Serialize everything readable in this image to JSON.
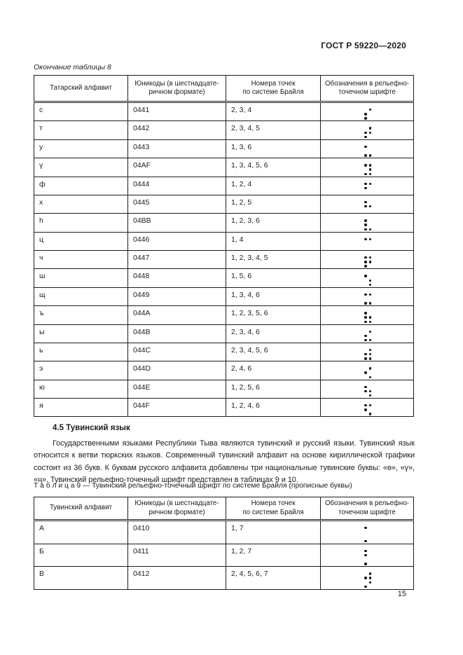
{
  "colors": {
    "text": "#1c1c1c",
    "border": "#1c1c1c",
    "background": "#ffffff"
  },
  "header": {
    "doc_number": "ГОСТ Р 59220—2020"
  },
  "table8": {
    "caption": "Окончание таблицы 8",
    "headers": {
      "col1": "Татарский алфавит",
      "col2": "Юникоды (в шестнадцате-\nричном формате)",
      "col3": "Номера точек\nпо системе Брайля",
      "col4": "Обозначения в рельефно-\nточечном шрифте"
    },
    "braille_grid_rows": 3,
    "rows": [
      {
        "letter": "с",
        "unicode": "0441",
        "dots_label": "2, 3, 4",
        "dots": [
          2,
          3,
          4
        ]
      },
      {
        "letter": "т",
        "unicode": "0442",
        "dots_label": "2, 3, 4, 5",
        "dots": [
          2,
          3,
          4,
          5
        ]
      },
      {
        "letter": "у",
        "unicode": "0443",
        "dots_label": "1, 3, 6",
        "dots": [
          1,
          3,
          6
        ]
      },
      {
        "letter": "ү",
        "unicode": "04AF",
        "dots_label": "1, 3, 4, 5, 6",
        "dots": [
          1,
          3,
          4,
          5,
          6
        ]
      },
      {
        "letter": "ф",
        "unicode": "0444",
        "dots_label": "1, 2, 4",
        "dots": [
          1,
          2,
          4
        ]
      },
      {
        "letter": "х",
        "unicode": "0445",
        "dots_label": "1, 2, 5",
        "dots": [
          1,
          2,
          5
        ]
      },
      {
        "letter": "h",
        "unicode": "04BB",
        "dots_label": "1, 2, 3, 6",
        "dots": [
          1,
          2,
          3,
          6
        ]
      },
      {
        "letter": "ц",
        "unicode": "0446",
        "dots_label": "1, 4",
        "dots": [
          1,
          4
        ]
      },
      {
        "letter": "ч",
        "unicode": "0447",
        "dots_label": "1, 2, 3, 4, 5",
        "dots": [
          1,
          2,
          3,
          4,
          5
        ]
      },
      {
        "letter": "ш",
        "unicode": "0448",
        "dots_label": "1, 5, 6",
        "dots": [
          1,
          5,
          6
        ]
      },
      {
        "letter": "щ",
        "unicode": "0449",
        "dots_label": "1, 3, 4, 6",
        "dots": [
          1,
          3,
          4,
          6
        ]
      },
      {
        "letter": "ъ",
        "unicode": "044A",
        "dots_label": "1, 2, 3, 5, 6",
        "dots": [
          1,
          2,
          3,
          5,
          6
        ]
      },
      {
        "letter": "ы",
        "unicode": "044B",
        "dots_label": "2, 3, 4, 6",
        "dots": [
          2,
          3,
          4,
          6
        ]
      },
      {
        "letter": "ь",
        "unicode": "044C",
        "dots_label": "2, 3, 4, 5, 6",
        "dots": [
          2,
          3,
          4,
          5,
          6
        ]
      },
      {
        "letter": "э",
        "unicode": "044D",
        "dots_label": "2, 4, 6",
        "dots": [
          2,
          4,
          6
        ]
      },
      {
        "letter": "ю",
        "unicode": "044E",
        "dots_label": "1, 2, 5, 6",
        "dots": [
          1,
          2,
          5,
          6
        ]
      },
      {
        "letter": "я",
        "unicode": "044F",
        "dots_label": "1, 2, 4, 6",
        "dots": [
          1,
          2,
          4,
          6
        ]
      }
    ]
  },
  "section": {
    "heading": "4.5 Тувинский язык",
    "paragraph": "Государственными языками Республики Тыва являются тувинский и русский языки. Тувинский язык относится к ветви тюркских языков. Современный тувинский алфавит на основе кириллической графики состоит из 36 букв. К буквам русского алфавита добавлены три национальные тувинские буквы: «ө», «ү», «ң». Тувинский рельефно-точечный шрифт представлен в таблицах 9 и 10."
  },
  "table9": {
    "label": "Т а б л и ц а  9 — Тувинский рельефно-точечный шрифт по системе Брайля (прописные буквы)",
    "headers": {
      "col1": "Тувинский алфавит",
      "col2": "Юникоды (в шестнадцате-\nричном формате)",
      "col3": "Номера точек\nпо системе Брайля",
      "col4": "Обозначения в рельефно-\nточечном шрифте"
    },
    "braille_grid_rows": 4,
    "rows": [
      {
        "letter": "А",
        "unicode": "0410",
        "dots_label": "1, 7",
        "dots": [
          1,
          7
        ]
      },
      {
        "letter": "Б",
        "unicode": "0411",
        "dots_label": "1, 2, 7",
        "dots": [
          1,
          2,
          7
        ]
      },
      {
        "letter": "В",
        "unicode": "0412",
        "dots_label": "2, 4, 5, 6, 7",
        "dots": [
          2,
          4,
          5,
          6,
          7
        ]
      }
    ]
  },
  "footer": {
    "page_number": "15"
  }
}
